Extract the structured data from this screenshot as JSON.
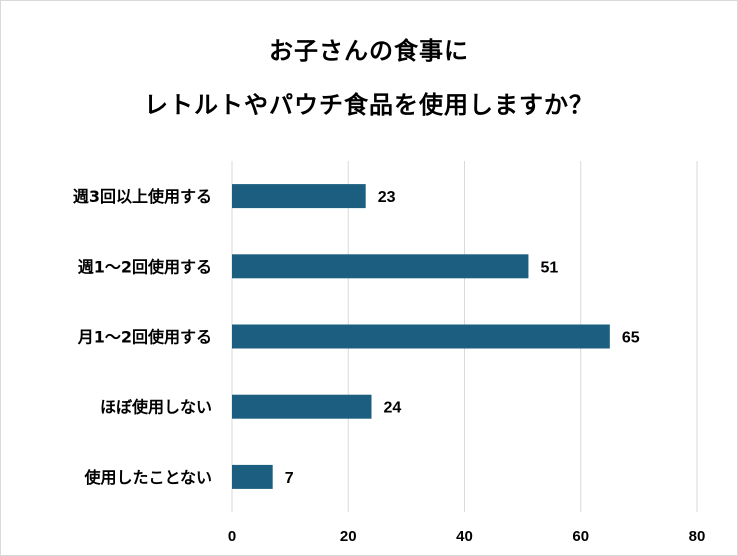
{
  "chart_data": {
    "type": "bar",
    "orientation": "horizontal",
    "title_lines": [
      "お子さんの食事に",
      "レトルトやパウチ食品を使用しますか？"
    ],
    "categories": [
      "週3回以上使用する",
      "週1〜2回使用する",
      "月1〜2回使用する",
      "ほぼ使用しない",
      "使用したことない"
    ],
    "values": [
      23,
      51,
      65,
      24,
      7
    ],
    "xlim": [
      0,
      80
    ],
    "xticks": [
      "0",
      "20",
      "40",
      "60",
      "80"
    ],
    "grid": "vertical",
    "bar_color": "#1b5e7f",
    "data_labels": true
  }
}
